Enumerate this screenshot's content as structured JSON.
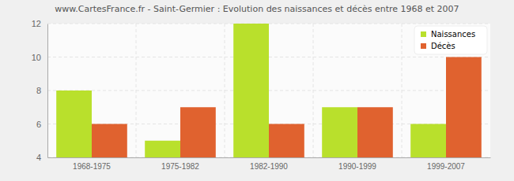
{
  "chart_data": {
    "type": "bar",
    "title": "www.CartesFrance.fr - Saint-Germier : Evolution des naissances et décès entre 1968 et 2007",
    "categories": [
      "1968-1975",
      "1975-1982",
      "1982-1990",
      "1990-1999",
      "1999-2007"
    ],
    "series": [
      {
        "name": "Naissances",
        "color": "#b9e02c",
        "values": [
          8,
          5,
          12,
          7,
          6
        ]
      },
      {
        "name": "Décès",
        "color": "#e0622f",
        "values": [
          6,
          7,
          6,
          7,
          10
        ]
      }
    ],
    "ylim": [
      4,
      12
    ],
    "yticks": [
      4,
      6,
      8,
      10,
      12
    ],
    "grid": true,
    "legend": "top-right"
  }
}
